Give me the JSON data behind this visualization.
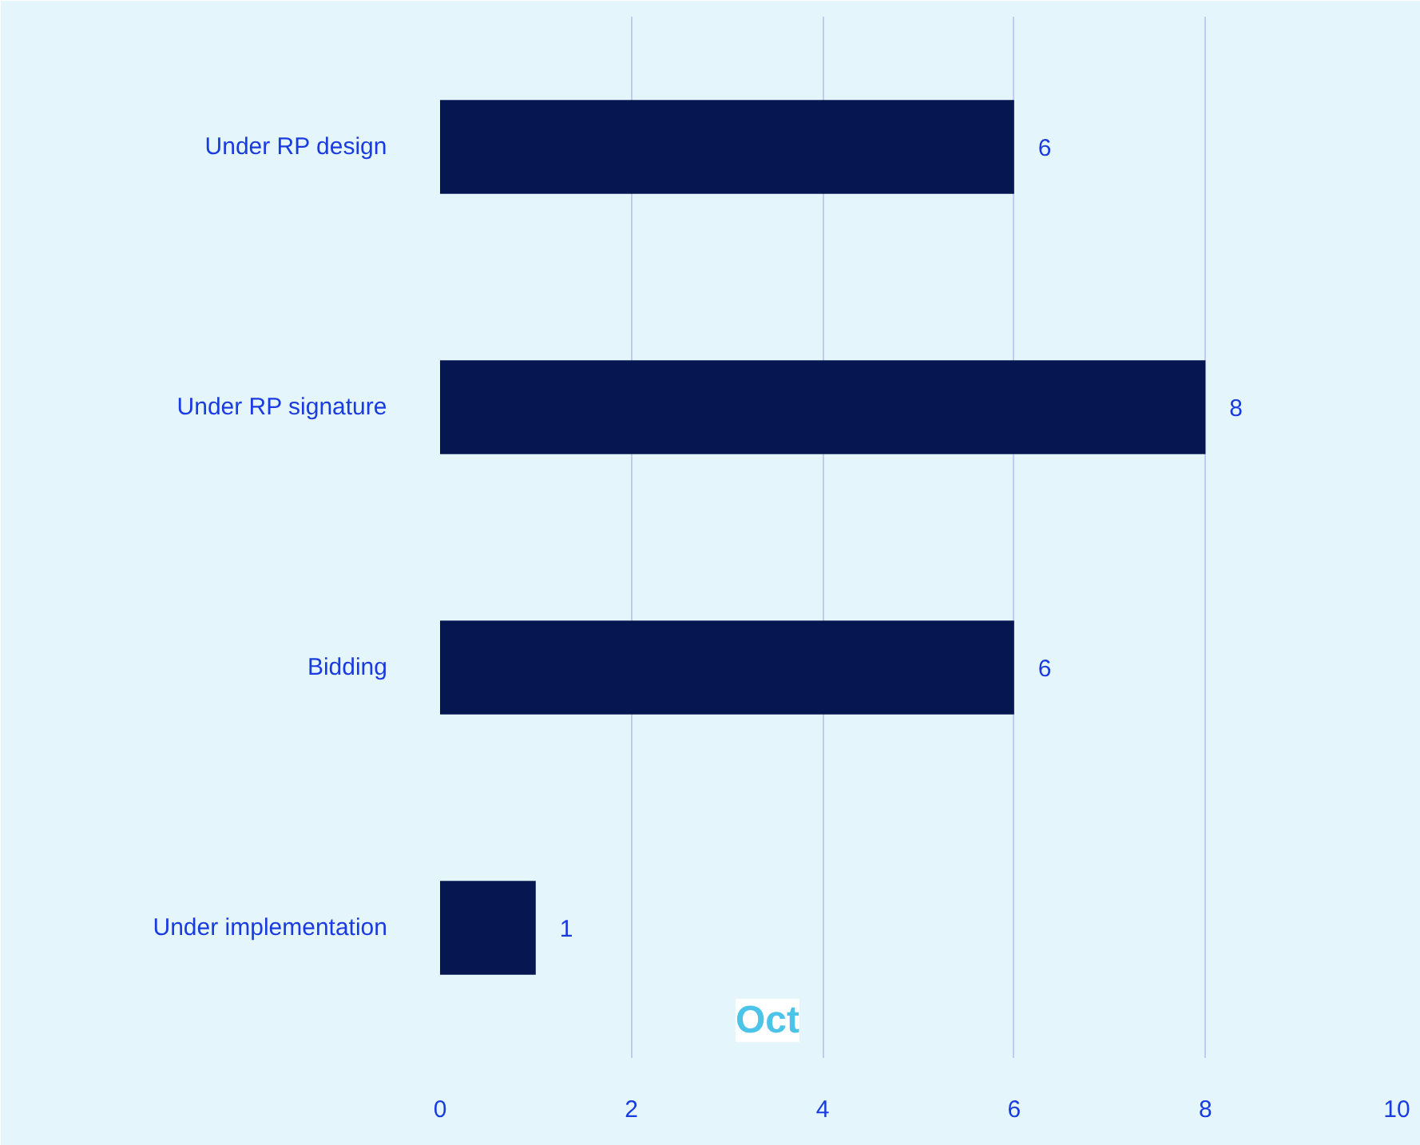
{
  "chart_data": {
    "type": "bar",
    "orientation": "horizontal",
    "categories": [
      "Under RP design",
      "Under RP signature",
      "Bidding",
      "Under implementation"
    ],
    "values": [
      6,
      8,
      6,
      1
    ],
    "color": "#051650",
    "xlim": [
      0,
      10
    ],
    "xticks": [
      0,
      2,
      4,
      6,
      8,
      10
    ],
    "grid": "x",
    "data_labels": true,
    "annotations": [
      "Oct"
    ]
  }
}
